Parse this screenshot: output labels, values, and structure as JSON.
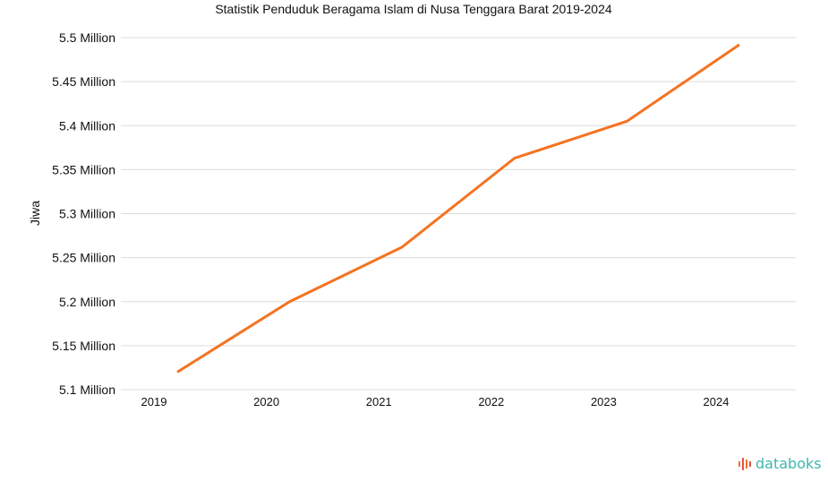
{
  "chart_data": {
    "type": "line",
    "title": "Statistik Penduduk Beragama Islam di Nusa Tenggara Barat 2019-2024",
    "xlabel": "",
    "ylabel": "Jiwa",
    "categories": [
      "2019",
      "2020",
      "2021",
      "2022",
      "2023",
      "2024"
    ],
    "series": [
      {
        "name": "Jiwa",
        "values": [
          5120000,
          5200000,
          5262000,
          5363000,
          5405000,
          5492000
        ]
      }
    ],
    "ylim": [
      5100000,
      5500000
    ],
    "yticks": [
      5100000,
      5150000,
      5200000,
      5250000,
      5300000,
      5350000,
      5400000,
      5450000,
      5500000
    ],
    "ytick_labels": [
      "5.1 Million",
      "5.15 Million",
      "5.2 Million",
      "5.25 Million",
      "5.3 Million",
      "5.35 Million",
      "5.4 Million",
      "5.45 Million",
      "5.5 Million"
    ],
    "grid": true,
    "line_color": "#f47321"
  },
  "brand": "databoks"
}
